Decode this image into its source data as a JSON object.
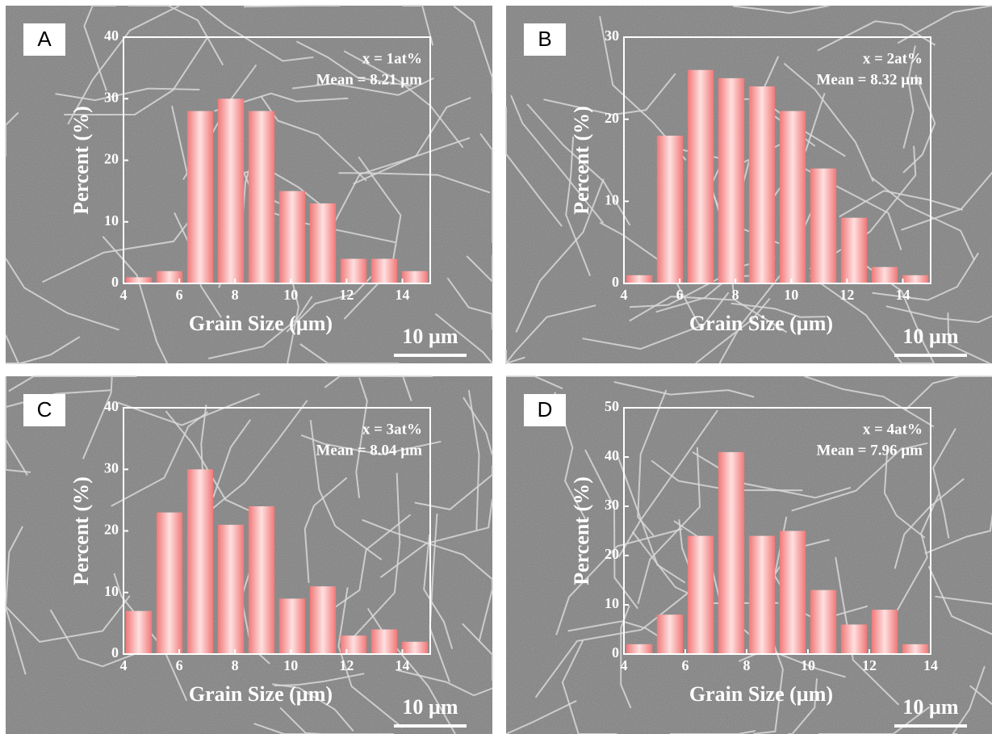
{
  "chart_data": [
    {
      "type": "histogram",
      "panel_label": "A",
      "annotations": [
        "x = 1at%",
        "Mean = 8.21 µm"
      ],
      "x_label": "Grain Size (µm)",
      "y_label": "Percent (%)",
      "scale_bar": "10 µm",
      "bins": [
        4,
        5.1,
        6.2,
        7.3,
        8.4,
        9.5,
        10.6,
        11.7,
        12.8,
        13.9,
        15
      ],
      "values": [
        1,
        2,
        28,
        30,
        28,
        15,
        13,
        4,
        4,
        2
      ],
      "color": "#f07878",
      "xlim": [
        4,
        15
      ],
      "xticks": [
        4,
        6,
        8,
        10,
        12,
        14
      ],
      "ylim": [
        0,
        40
      ],
      "yticks": [
        0,
        10,
        20,
        30,
        40
      ]
    },
    {
      "type": "histogram",
      "panel_label": "B",
      "annotations": [
        "x = 2at%",
        "Mean = 8.32 µm"
      ],
      "x_label": "Grain Size (µm)",
      "y_label": "Percent (%)",
      "scale_bar": "10 µm",
      "bins": [
        4,
        5.1,
        6.2,
        7.3,
        8.4,
        9.5,
        10.6,
        11.7,
        12.8,
        13.9,
        15
      ],
      "values": [
        1,
        18,
        26,
        25,
        24,
        21,
        14,
        8,
        2,
        1
      ],
      "color": "#f07878",
      "xlim": [
        4,
        15
      ],
      "xticks": [
        4,
        6,
        8,
        10,
        12,
        14
      ],
      "ylim": [
        0,
        30
      ],
      "yticks": [
        0,
        10,
        20,
        30
      ]
    },
    {
      "type": "histogram",
      "panel_label": "C",
      "annotations": [
        "x = 3at%",
        "Mean = 8.04 µm"
      ],
      "x_label": "Grain Size (µm)",
      "y_label": "Percent (%)",
      "scale_bar": "10 µm",
      "bins": [
        4,
        5.1,
        6.2,
        7.3,
        8.4,
        9.5,
        10.6,
        11.7,
        12.8,
        13.9,
        15
      ],
      "values": [
        7,
        23,
        30,
        21,
        24,
        9,
        11,
        3,
        4,
        2
      ],
      "color": "#f07878",
      "xlim": [
        4,
        15
      ],
      "xticks": [
        4,
        6,
        8,
        10,
        12,
        14
      ],
      "ylim": [
        0,
        40
      ],
      "yticks": [
        0,
        10,
        20,
        30,
        40
      ]
    },
    {
      "type": "histogram",
      "panel_label": "D",
      "annotations": [
        "x = 4at%",
        "Mean = 7.96 µm"
      ],
      "x_label": "Grain Size (µm)",
      "y_label": "Percent (%)",
      "scale_bar": "10 µm",
      "bins": [
        4,
        5,
        6,
        7,
        8,
        9,
        10,
        11,
        12,
        13,
        14
      ],
      "values": [
        2,
        8,
        24,
        41,
        24,
        25,
        13,
        6,
        9,
        2
      ],
      "color": "#f07878",
      "xlim": [
        4,
        14
      ],
      "xticks": [
        4,
        6,
        8,
        10,
        12,
        14
      ],
      "ylim": [
        0,
        50
      ],
      "yticks": [
        0,
        10,
        20,
        30,
        40,
        50
      ]
    }
  ]
}
